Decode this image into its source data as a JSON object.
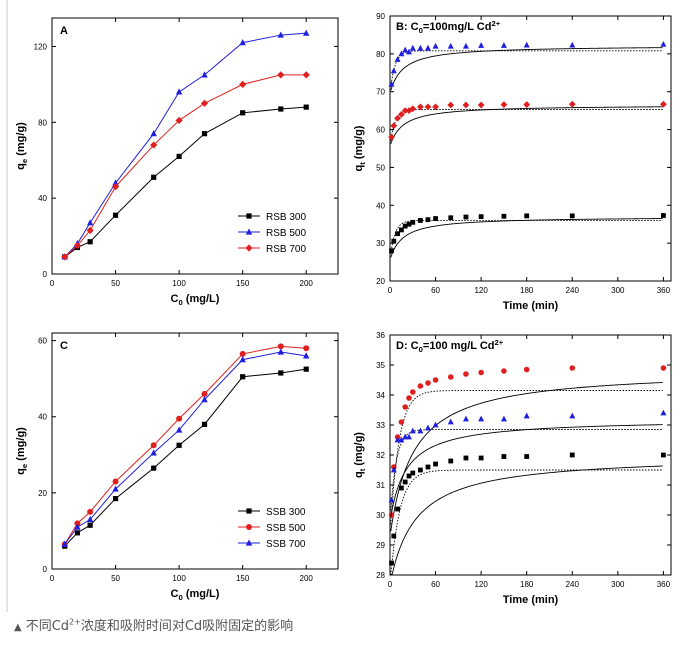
{
  "caption": {
    "icon": "triangle-up-icon",
    "text_before": "不同Cd",
    "superscript": "2+",
    "text_after": "浓度和吸附时间对Cd吸附固定的影响"
  },
  "chart_data": [
    {
      "id": "A",
      "type": "line",
      "panel_label": "A",
      "xlabel": "C",
      "xlabel_sub": "0",
      "xlabel_unit": " (mg/L)",
      "ylabel": "q",
      "ylabel_sub": "e",
      "ylabel_unit": " (mg/g)",
      "xlim": [
        0,
        225
      ],
      "ylim": [
        0,
        135
      ],
      "xticks": [
        0,
        50,
        100,
        150,
        200
      ],
      "yticks": [
        0,
        40,
        80,
        120
      ],
      "legend_position": "bottom-right",
      "series": [
        {
          "name": "RSB 300",
          "color": "#000000",
          "marker": "square",
          "x": [
            10,
            20,
            30,
            50,
            80,
            100,
            120,
            150,
            180,
            200
          ],
          "y": [
            9,
            14,
            17,
            31,
            51,
            62,
            74,
            85,
            87,
            88
          ]
        },
        {
          "name": "RSB 500",
          "color": "#1f1fe0",
          "marker": "triangle",
          "x": [
            10,
            20,
            30,
            50,
            80,
            100,
            120,
            150,
            180,
            200
          ],
          "y": [
            9,
            16,
            27,
            48,
            74,
            96,
            105,
            122,
            126,
            127
          ]
        },
        {
          "name": "RSB 700",
          "color": "#e02020",
          "marker": "diamond",
          "x": [
            10,
            20,
            30,
            50,
            80,
            100,
            120,
            150,
            180,
            200
          ],
          "y": [
            9,
            15,
            23,
            46,
            68,
            81,
            90,
            100,
            105,
            105
          ]
        }
      ]
    },
    {
      "id": "B",
      "type": "scatter",
      "panel_label": "B: C",
      "panel_label_sub": "0",
      "panel_label_rest": "=100mg/L Cd",
      "panel_label_sup": "2+",
      "xlabel": "Time (min)",
      "ylabel": "q",
      "ylabel_sub": "t",
      "ylabel_unit": " (mg/g)",
      "xlim": [
        0,
        370
      ],
      "ylim": [
        20,
        90
      ],
      "xticks": [
        0,
        60,
        120,
        180,
        240,
        300,
        360
      ],
      "yticks": [
        20,
        30,
        40,
        50,
        60,
        70,
        80,
        90
      ],
      "series": [
        {
          "color": "#1f1fe0",
          "marker": "triangle",
          "fit_solid": 82.2,
          "fit_dotted": 80.8,
          "x": [
            2,
            5,
            10,
            15,
            20,
            25,
            30,
            40,
            50,
            60,
            80,
            100,
            120,
            150,
            180,
            240,
            360
          ],
          "y": [
            72.0,
            75.5,
            78.5,
            80.0,
            81.0,
            80.5,
            81.5,
            81.5,
            81.5,
            82.0,
            82.0,
            82.0,
            82.2,
            82.2,
            82.3,
            82.3,
            82.5
          ]
        },
        {
          "color": "#e02020",
          "marker": "diamond",
          "fit_solid": 66.5,
          "fit_dotted": 65.3,
          "x": [
            2,
            5,
            10,
            15,
            20,
            25,
            30,
            40,
            50,
            60,
            80,
            100,
            120,
            150,
            180,
            240,
            360
          ],
          "y": [
            58.0,
            61.0,
            63.0,
            64.0,
            65.0,
            65.0,
            65.5,
            66.0,
            66.0,
            66.0,
            66.5,
            66.5,
            66.5,
            66.6,
            66.6,
            66.7,
            66.7
          ]
        },
        {
          "color": "#000000",
          "marker": "square",
          "fit_solid": 37.0,
          "fit_dotted": 36.0,
          "x": [
            2,
            5,
            10,
            15,
            20,
            25,
            30,
            40,
            50,
            60,
            80,
            100,
            120,
            150,
            180,
            240,
            360
          ],
          "y": [
            28.0,
            30.5,
            32.5,
            33.5,
            34.5,
            35.0,
            35.5,
            36.0,
            36.2,
            36.5,
            36.7,
            36.9,
            37.0,
            37.1,
            37.2,
            37.2,
            37.3
          ]
        }
      ]
    },
    {
      "id": "C",
      "type": "line",
      "panel_label": "C",
      "xlabel": "C",
      "xlabel_sub": "0",
      "xlabel_unit": " (mg/L)",
      "ylabel": "q",
      "ylabel_sub": "e",
      "ylabel_unit": " (mg/g)",
      "xlim": [
        0,
        225
      ],
      "ylim": [
        0,
        62
      ],
      "xticks": [
        0,
        50,
        100,
        150,
        200
      ],
      "yticks": [
        0,
        20,
        40,
        60
      ],
      "legend_position": "bottom-right",
      "series": [
        {
          "name": "SSB 300",
          "color": "#000000",
          "marker": "square",
          "x": [
            10,
            20,
            30,
            50,
            80,
            100,
            120,
            150,
            180,
            200
          ],
          "y": [
            6,
            9.5,
            11.5,
            18.5,
            26.5,
            32.5,
            38,
            50.5,
            51.5,
            52.5
          ]
        },
        {
          "name": "SSB 500",
          "color": "#e02020",
          "marker": "circle",
          "x": [
            10,
            20,
            30,
            50,
            80,
            100,
            120,
            150,
            180,
            200
          ],
          "y": [
            6.5,
            12,
            15,
            23,
            32.5,
            39.5,
            46,
            56.5,
            58.5,
            58
          ]
        },
        {
          "name": "SSB 700",
          "color": "#1f1fe0",
          "marker": "triangle",
          "x": [
            10,
            20,
            30,
            50,
            80,
            100,
            120,
            150,
            180,
            200
          ],
          "y": [
            6.5,
            11,
            13,
            21,
            30.5,
            36.5,
            44.5,
            55,
            57,
            56
          ]
        }
      ]
    },
    {
      "id": "D",
      "type": "scatter",
      "panel_label": "D: C",
      "panel_label_sub": "0",
      "panel_label_rest": "=100 mg/L Cd",
      "panel_label_sup": "2+",
      "xlabel": "Time (min)",
      "ylabel": "q",
      "ylabel_sub": "t",
      "ylabel_unit": " (mg/g)",
      "xlim": [
        0,
        370
      ],
      "ylim": [
        28,
        36
      ],
      "xticks": [
        0,
        60,
        120,
        180,
        240,
        300,
        360
      ],
      "yticks": [
        28,
        29,
        30,
        31,
        32,
        33,
        34,
        35,
        36
      ],
      "series": [
        {
          "color": "#e02020",
          "marker": "circle",
          "fit_solid": 34.85,
          "fit_dotted": 34.15,
          "fit_rate": 0.055,
          "x": [
            2,
            5,
            10,
            15,
            20,
            25,
            30,
            40,
            50,
            60,
            80,
            100,
            120,
            150,
            180,
            240,
            360
          ],
          "y": [
            30.0,
            31.6,
            32.6,
            33.1,
            33.6,
            33.9,
            34.1,
            34.3,
            34.4,
            34.5,
            34.6,
            34.7,
            34.75,
            34.8,
            34.85,
            34.9,
            34.9
          ]
        },
        {
          "color": "#1f1fe0",
          "marker": "triangle",
          "fit_solid": 33.2,
          "fit_dotted": 32.85,
          "fit_rate": 0.08,
          "x": [
            2,
            5,
            10,
            15,
            20,
            25,
            30,
            40,
            50,
            60,
            80,
            100,
            120,
            150,
            180,
            240,
            360
          ],
          "y": [
            30.5,
            31.5,
            32.5,
            32.5,
            32.6,
            32.6,
            32.8,
            32.8,
            32.9,
            33.0,
            33.1,
            33.2,
            33.2,
            33.2,
            33.3,
            33.3,
            33.4
          ]
        },
        {
          "color": "#000000",
          "marker": "square",
          "fit_solid": 32.0,
          "fit_dotted": 31.5,
          "fit_rate": 0.05,
          "x": [
            2,
            5,
            10,
            15,
            20,
            25,
            30,
            40,
            50,
            60,
            80,
            100,
            120,
            150,
            180,
            240,
            360
          ],
          "y": [
            28.4,
            29.3,
            30.2,
            30.9,
            31.1,
            31.3,
            31.4,
            31.5,
            31.6,
            31.7,
            31.8,
            31.9,
            31.9,
            31.95,
            31.95,
            32.0,
            32.0
          ]
        }
      ]
    }
  ]
}
